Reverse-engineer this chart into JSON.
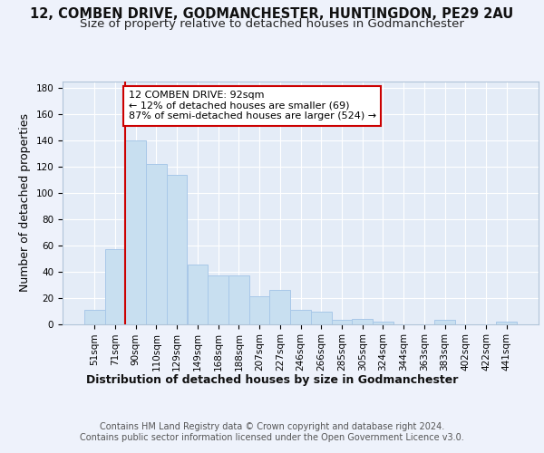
{
  "title1": "12, COMBEN DRIVE, GODMANCHESTER, HUNTINGDON, PE29 2AU",
  "title2": "Size of property relative to detached houses in Godmanchester",
  "xlabel": "Distribution of detached houses by size in Godmanchester",
  "ylabel": "Number of detached properties",
  "footer1": "Contains HM Land Registry data © Crown copyright and database right 2024.",
  "footer2": "Contains public sector information licensed under the Open Government Licence v3.0.",
  "annotation_line1": "12 COMBEN DRIVE: 92sqm",
  "annotation_line2": "← 12% of detached houses are smaller (69)",
  "annotation_line3": "87% of semi-detached houses are larger (524) →",
  "property_sqm": 92,
  "bar_edge_color": "#a8c8e8",
  "bar_face_color": "#c8dff0",
  "highlight_line_color": "#cc0000",
  "annotation_box_edge_color": "#cc0000",
  "annotation_box_face_color": "#ffffff",
  "categories": [
    "51sqm",
    "71sqm",
    "90sqm",
    "110sqm",
    "129sqm",
    "149sqm",
    "168sqm",
    "188sqm",
    "207sqm",
    "227sqm",
    "246sqm",
    "266sqm",
    "285sqm",
    "305sqm",
    "324sqm",
    "344sqm",
    "363sqm",
    "383sqm",
    "402sqm",
    "422sqm",
    "441sqm"
  ],
  "values": [
    11,
    57,
    140,
    122,
    114,
    45,
    37,
    37,
    21,
    26,
    11,
    9,
    3,
    4,
    2,
    0,
    0,
    3,
    0,
    0,
    2
  ],
  "ylim": [
    0,
    185
  ],
  "yticks": [
    0,
    20,
    40,
    60,
    80,
    100,
    120,
    140,
    160,
    180
  ],
  "background_color": "#eef2fb",
  "plot_background_color": "#e4ecf7",
  "grid_color": "#ffffff",
  "title1_fontsize": 10.5,
  "title2_fontsize": 9.5,
  "axis_label_fontsize": 9,
  "tick_fontsize": 7.5,
  "footer_fontsize": 7,
  "annotation_fontsize": 8
}
